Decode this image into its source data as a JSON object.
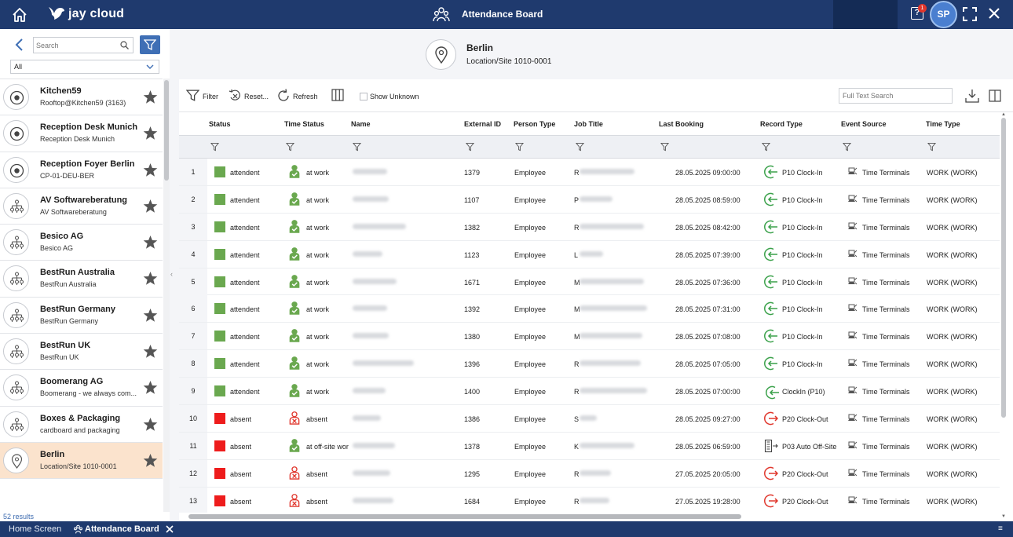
{
  "topbar": {
    "brand": "jay cloud",
    "app_title": "Attendance Board",
    "notification_count": "1",
    "user_initials": "SP"
  },
  "sidebar": {
    "search_placeholder": "Search",
    "select_value": "All",
    "results_text": "52  results",
    "items": [
      {
        "title": "Kitchen59",
        "subtitle": "Rooftop@Kitchen59 (3163)",
        "icon": "target-icon"
      },
      {
        "title": "Reception Desk Munich",
        "subtitle": "Reception Desk Munich",
        "icon": "target-icon"
      },
      {
        "title": "Reception Foyer Berlin",
        "subtitle": "CP-01-DEU-BER",
        "icon": "target-icon"
      },
      {
        "title": "AV Softwareberatung",
        "subtitle": "AV Softwareberatung",
        "icon": "org-chart-icon"
      },
      {
        "title": "Besico AG",
        "subtitle": "Besico AG",
        "icon": "org-chart-icon"
      },
      {
        "title": "BestRun Australia",
        "subtitle": "BestRun Australia",
        "icon": "org-chart-icon"
      },
      {
        "title": "BestRun Germany",
        "subtitle": "BestRun Germany",
        "icon": "org-chart-icon"
      },
      {
        "title": "BestRun UK",
        "subtitle": "BestRun UK",
        "icon": "org-chart-icon"
      },
      {
        "title": "Boomerang AG",
        "subtitle": "Boomerang - we always com...",
        "icon": "org-chart-icon"
      },
      {
        "title": "Boxes & Packaging",
        "subtitle": "cardboard and packaging",
        "icon": "org-chart-icon"
      },
      {
        "title": "Berlin",
        "subtitle": "Location/Site 1010-0001",
        "icon": "location-pin-icon",
        "selected": true
      }
    ]
  },
  "header": {
    "title": "Berlin",
    "subtitle": "Location/Site 1010-0001"
  },
  "toolbar": {
    "filter_label": "Filter",
    "reset_label": "Reset...",
    "refresh_label": "Refresh",
    "show_unknown_label": "Show Unknown",
    "full_text_search_placeholder": "Full Text Search"
  },
  "table": {
    "columns": [
      "Status",
      "Time Status",
      "Name",
      "External ID",
      "Person Type",
      "Job Title",
      "Last Booking",
      "Record Type",
      "Event Source",
      "Time Type"
    ],
    "rows": [
      {
        "num": "1",
        "status": "attendent",
        "status_color": "#6aa84f",
        "time_status": "at work",
        "present": true,
        "external_id": "1379",
        "person_type": "Employee",
        "job_initial": "R",
        "last_booking": "28.05.2025 09:00:00",
        "record_type": "P10 Clock-In",
        "record_kind": "in",
        "event_source": "Time Terminals",
        "time_type": "WORK (WORK)"
      },
      {
        "num": "2",
        "status": "attendent",
        "status_color": "#6aa84f",
        "time_status": "at work",
        "present": true,
        "external_id": "1107",
        "person_type": "Employee",
        "job_initial": "P",
        "last_booking": "28.05.2025 08:59:00",
        "record_type": "P10 Clock-In",
        "record_kind": "in",
        "event_source": "Time Terminals",
        "time_type": "WORK (WORK)"
      },
      {
        "num": "3",
        "status": "attendent",
        "status_color": "#6aa84f",
        "time_status": "at work",
        "present": true,
        "external_id": "1382",
        "person_type": "Employee",
        "job_initial": "R",
        "last_booking": "28.05.2025 08:42:00",
        "record_type": "P10 Clock-In",
        "record_kind": "in",
        "event_source": "Time Terminals",
        "time_type": "WORK (WORK)"
      },
      {
        "num": "4",
        "status": "attendent",
        "status_color": "#6aa84f",
        "time_status": "at work",
        "present": true,
        "external_id": "1123",
        "person_type": "Employee",
        "job_initial": "L",
        "last_booking": "28.05.2025 07:39:00",
        "record_type": "P10 Clock-In",
        "record_kind": "in",
        "event_source": "Time Terminals",
        "time_type": "WORK (WORK)"
      },
      {
        "num": "5",
        "status": "attendent",
        "status_color": "#6aa84f",
        "time_status": "at work",
        "present": true,
        "external_id": "1671",
        "person_type": "Employee",
        "job_initial": "M",
        "last_booking": "28.05.2025 07:36:00",
        "record_type": "P10 Clock-In",
        "record_kind": "in",
        "event_source": "Time Terminals",
        "time_type": "WORK (WORK)"
      },
      {
        "num": "6",
        "status": "attendent",
        "status_color": "#6aa84f",
        "time_status": "at work",
        "present": true,
        "external_id": "1392",
        "person_type": "Employee",
        "job_initial": "M",
        "last_booking": "28.05.2025 07:31:00",
        "record_type": "P10 Clock-In",
        "record_kind": "in",
        "event_source": "Time Terminals",
        "time_type": "WORK (WORK)"
      },
      {
        "num": "7",
        "status": "attendent",
        "status_color": "#6aa84f",
        "time_status": "at work",
        "present": true,
        "external_id": "1380",
        "person_type": "Employee",
        "job_initial": "M",
        "last_booking": "28.05.2025 07:08:00",
        "record_type": "P10 Clock-In",
        "record_kind": "in",
        "event_source": "Time Terminals",
        "time_type": "WORK (WORK)"
      },
      {
        "num": "8",
        "status": "attendent",
        "status_color": "#6aa84f",
        "time_status": "at work",
        "present": true,
        "external_id": "1396",
        "person_type": "Employee",
        "job_initial": "R",
        "last_booking": "28.05.2025 07:05:00",
        "record_type": "P10 Clock-In",
        "record_kind": "in",
        "event_source": "Time Terminals",
        "time_type": "WORK (WORK)"
      },
      {
        "num": "9",
        "status": "attendent",
        "status_color": "#6aa84f",
        "time_status": "at work",
        "present": true,
        "external_id": "1400",
        "person_type": "Employee",
        "job_initial": "R",
        "last_booking": "28.05.2025 07:00:00",
        "record_type": "ClockIn (P10)",
        "record_kind": "in-small",
        "event_source": "Time Terminals",
        "time_type": "WORK (WORK)"
      },
      {
        "num": "10",
        "status": "absent",
        "status_color": "#ee1c1c",
        "time_status": "absent",
        "present": false,
        "external_id": "1386",
        "person_type": "Employee",
        "job_initial": "S",
        "last_booking": "28.05.2025 09:27:00",
        "record_type": "P20 Clock-Out",
        "record_kind": "out",
        "event_source": "Time Terminals",
        "time_type": "WORK (WORK)"
      },
      {
        "num": "11",
        "status": "absent",
        "status_color": "#ee1c1c",
        "time_status": "at off-site wor",
        "present": true,
        "external_id": "1378",
        "person_type": "Employee",
        "job_initial": "K",
        "last_booking": "28.05.2025 06:59:00",
        "record_type": "P03 Auto Off-Site",
        "record_kind": "offsite",
        "event_source": "Time Terminals",
        "time_type": "WORK (WORK)"
      },
      {
        "num": "12",
        "status": "absent",
        "status_color": "#ee1c1c",
        "time_status": "absent",
        "present": false,
        "external_id": "1295",
        "person_type": "Employee",
        "job_initial": "R",
        "last_booking": "27.05.2025 20:05:00",
        "record_type": "P20 Clock-Out",
        "record_kind": "out",
        "event_source": "Time Terminals",
        "time_type": "WORK (WORK)"
      },
      {
        "num": "13",
        "status": "absent",
        "status_color": "#ee1c1c",
        "time_status": "absent",
        "present": false,
        "external_id": "1684",
        "person_type": "Employee",
        "job_initial": "R",
        "last_booking": "27.05.2025 19:28:00",
        "record_type": "P20 Clock-Out",
        "record_kind": "out",
        "event_source": "Time Terminals",
        "time_type": "WORK (WORK)"
      }
    ]
  },
  "bottom_tabs": {
    "home": "Home Screen",
    "active": "Attendance Board"
  },
  "colors": {
    "brand_navy": "#1f3a6e",
    "accent_blue": "#3f6fb5",
    "present_green": "#6aa84f",
    "absent_red": "#ee1c1c",
    "selected_row": "#fbe3cd"
  }
}
